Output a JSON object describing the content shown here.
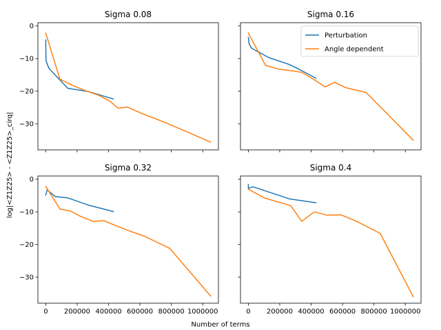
{
  "figure": {
    "xlabel": "Number of terms",
    "ylabel": "log|<Z1Z25> - <Z1Z25>_cirq|",
    "legend_location": "upper right of the top-right panel"
  },
  "colors": {
    "perturbation": "#1f77b4",
    "angle_dependent": "#ff7f0e"
  },
  "chart_data": [
    {
      "type": "line",
      "title": "Sigma 0.08",
      "xlim": [
        -50000,
        1100000
      ],
      "ylim": [
        -38,
        1
      ],
      "xticks": [
        0,
        200000,
        400000,
        600000,
        800000,
        1000000
      ],
      "yticks": [
        0,
        -10,
        -20,
        -30
      ],
      "series": [
        {
          "name": "Perturbation",
          "x": [
            0,
            500,
            2000,
            20000,
            140000,
            270000,
            430000
          ],
          "y": [
            -4.3,
            -7.5,
            -10.7,
            -13,
            -19.1,
            -20.1,
            -22.4
          ]
        },
        {
          "name": "Angle dependent",
          "x": [
            0,
            90000,
            170000,
            250000,
            340000,
            410000,
            460000,
            520000,
            610000,
            770000,
            1050000
          ],
          "y": [
            -2.2,
            -16.3,
            -18.2,
            -19.8,
            -21.3,
            -23.1,
            -25.2,
            -24.9,
            -26.8,
            -29.8,
            -35.6
          ]
        }
      ]
    },
    {
      "type": "line",
      "title": "Sigma 0.16",
      "xlim": [
        -50000,
        1100000
      ],
      "ylim": [
        -38,
        1
      ],
      "xticks": [
        0,
        200000,
        400000,
        600000,
        800000,
        1000000
      ],
      "yticks": [
        0,
        -10,
        -20,
        -30
      ],
      "legend": [
        "Perturbation",
        "Angle dependent"
      ],
      "series": [
        {
          "name": "Perturbation",
          "x": [
            0,
            5000,
            20000,
            130000,
            260000,
            340000,
            430000
          ],
          "y": [
            -3.5,
            -5.5,
            -6.8,
            -9.7,
            -11.8,
            -13.7,
            -16.0
          ]
        },
        {
          "name": "Angle dependent",
          "x": [
            0,
            110000,
            200000,
            270000,
            340000,
            420000,
            490000,
            550000,
            620000,
            750000,
            1050000
          ],
          "y": [
            -2.2,
            -12.1,
            -13.3,
            -13.7,
            -14.2,
            -16.5,
            -18.7,
            -17.3,
            -18.9,
            -20.4,
            -35.0
          ]
        }
      ]
    },
    {
      "type": "line",
      "title": "Sigma 0.32",
      "xlim": [
        -50000,
        1100000
      ],
      "ylim": [
        -38,
        1
      ],
      "xticks": [
        0,
        200000,
        400000,
        600000,
        800000,
        1000000
      ],
      "yticks": [
        0,
        -10,
        -20,
        -30
      ],
      "series": [
        {
          "name": "Perturbation",
          "x": [
            0,
            10000,
            20000,
            60000,
            140000,
            270000,
            430000
          ],
          "y": [
            -4.8,
            -3.2,
            -3.7,
            -5.3,
            -5.7,
            -7.9,
            -9.9
          ]
        },
        {
          "name": "Angle dependent",
          "x": [
            0,
            90000,
            160000,
            210000,
            300000,
            370000,
            430000,
            530000,
            630000,
            790000,
            1050000
          ],
          "y": [
            -2.2,
            -9.1,
            -9.8,
            -11.1,
            -12.9,
            -12.7,
            -13.9,
            -15.8,
            -17.5,
            -21.2,
            -35.8
          ]
        }
      ]
    },
    {
      "type": "line",
      "title": "Sigma 0.4",
      "xlim": [
        -50000,
        1100000
      ],
      "ylim": [
        -38,
        1
      ],
      "xticks": [
        0,
        200000,
        400000,
        600000,
        800000,
        1000000
      ],
      "yticks": [
        0,
        -10,
        -20,
        -30
      ],
      "series": [
        {
          "name": "Perturbation",
          "x": [
            0,
            500,
            5000,
            30000,
            260000,
            430000
          ],
          "y": [
            -1.6,
            -3.0,
            -2.7,
            -2.3,
            -6.0,
            -7.2
          ]
        },
        {
          "name": "Angle dependent",
          "x": [
            0,
            100000,
            270000,
            340000,
            420000,
            500000,
            590000,
            690000,
            840000,
            1050000
          ],
          "y": [
            -3.0,
            -5.7,
            -8.1,
            -12.9,
            -10.0,
            -11.0,
            -10.9,
            -12.9,
            -16.6,
            -36.0
          ]
        }
      ]
    }
  ]
}
